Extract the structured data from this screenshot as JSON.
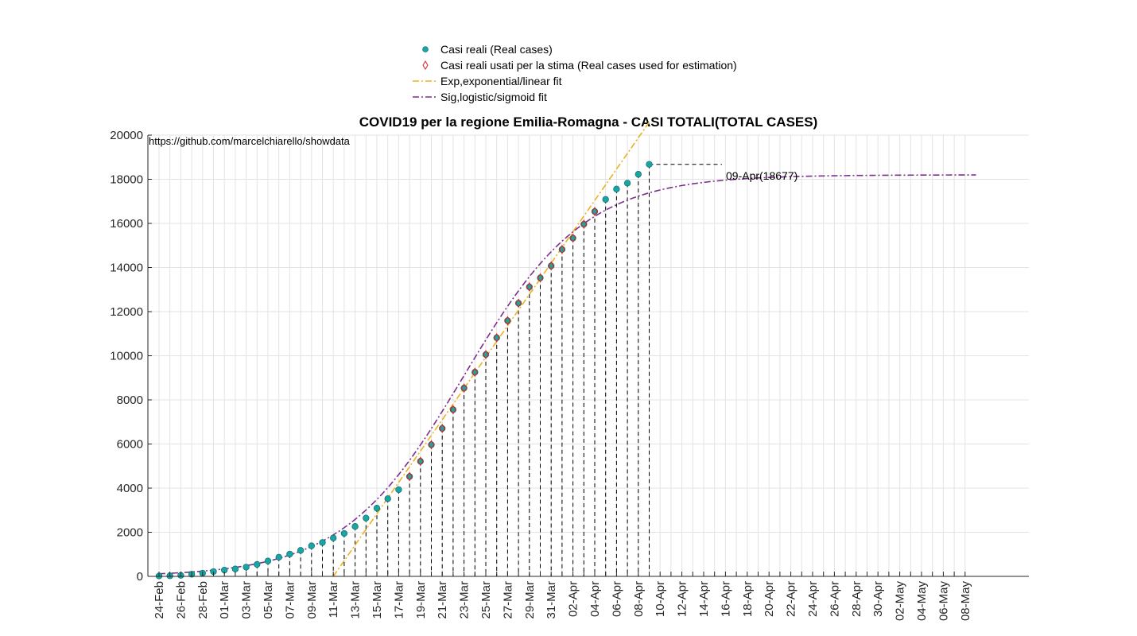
{
  "chart_data": {
    "type": "scatter",
    "title": "COVID19 per la regione Emilia-Romagna - CASI TOTALI(TOTAL CASES)",
    "source_note": "https://github.com/marcelchiarello/showdata",
    "annotation": "09-Apr(18677)",
    "xlabel": "",
    "ylabel": "",
    "x_start_date": "24-Feb",
    "x_tick_labels": [
      "24-Feb",
      "26-Feb",
      "28-Feb",
      "01-Mar",
      "03-Mar",
      "05-Mar",
      "07-Mar",
      "09-Mar",
      "11-Mar",
      "13-Mar",
      "15-Mar",
      "17-Mar",
      "19-Mar",
      "21-Mar",
      "23-Mar",
      "25-Mar",
      "27-Mar",
      "29-Mar",
      "31-Mar",
      "02-Apr",
      "04-Apr",
      "06-Apr",
      "08-Apr",
      "10-Apr",
      "12-Apr",
      "14-Apr",
      "16-Apr",
      "18-Apr",
      "20-Apr",
      "22-Apr",
      "24-Apr",
      "26-Apr",
      "28-Apr",
      "30-Apr",
      "02-May",
      "04-May",
      "06-May",
      "08-May"
    ],
    "ylim": [
      0,
      20000
    ],
    "y_ticks": [
      0,
      2000,
      4000,
      6000,
      8000,
      10000,
      12000,
      14000,
      16000,
      18000,
      20000
    ],
    "grid": true,
    "legend_position": "top",
    "series": [
      {
        "name": "Casi reali (Real cases)",
        "kind": "points",
        "color": "#1aa5a5",
        "dates": [
          "24-Feb",
          "25-Feb",
          "26-Feb",
          "27-Feb",
          "28-Feb",
          "29-Feb",
          "01-Mar",
          "02-Mar",
          "03-Mar",
          "04-Mar",
          "05-Mar",
          "06-Mar",
          "07-Mar",
          "08-Mar",
          "09-Mar",
          "10-Mar",
          "11-Mar",
          "12-Mar",
          "13-Mar",
          "14-Mar",
          "15-Mar",
          "16-Mar",
          "17-Mar",
          "18-Mar",
          "19-Mar",
          "20-Mar",
          "21-Mar",
          "22-Mar",
          "23-Mar",
          "24-Mar",
          "25-Mar",
          "26-Mar",
          "27-Mar",
          "28-Mar",
          "29-Mar",
          "30-Mar",
          "31-Mar",
          "01-Apr",
          "02-Apr",
          "03-Apr",
          "04-Apr",
          "05-Apr",
          "06-Apr",
          "07-Apr",
          "08-Apr",
          "09-Apr"
        ],
        "values": [
          18,
          26,
          47,
          97,
          145,
          217,
          285,
          335,
          420,
          544,
          698,
          870,
          1010,
          1180,
          1386,
          1533,
          1739,
          1947,
          2263,
          2644,
          3093,
          3522,
          3931,
          4525,
          5214,
          5968,
          6705,
          7555,
          8535,
          9254,
          10054,
          10816,
          11588,
          12383,
          13119,
          13531,
          14074,
          14821,
          15333,
          15963,
          16540,
          17089,
          17556,
          17825,
          18229,
          18677
        ]
      },
      {
        "name": "Casi reali usati per la stima (Real cases used for estimation)",
        "kind": "diamonds",
        "color": "#e02020",
        "dates": [
          "18-Mar",
          "19-Mar",
          "20-Mar",
          "21-Mar",
          "22-Mar",
          "23-Mar",
          "24-Mar",
          "25-Mar",
          "26-Mar",
          "27-Mar",
          "28-Mar",
          "29-Mar",
          "30-Mar",
          "31-Mar",
          "01-Apr",
          "02-Apr",
          "03-Apr",
          "04-Apr"
        ],
        "values": [
          4525,
          5214,
          5968,
          6705,
          7555,
          8535,
          9254,
          10054,
          10816,
          11588,
          12383,
          13119,
          13531,
          14074,
          14821,
          15333,
          15963,
          16540
        ]
      },
      {
        "name": "Exp,exponential/linear fit",
        "kind": "line",
        "color": "#edb120",
        "dash": "dashdot",
        "from_date": "11-Mar",
        "to_date": "09-Apr",
        "start_value": 0,
        "slope_per_day": 710
      },
      {
        "name": "Sig,logistic/sigmoid fit",
        "kind": "line",
        "color": "#7e2f8e",
        "dash": "dashdot",
        "from_date": "24-Feb",
        "to_date": "09-May",
        "logistic": {
          "L": 18200,
          "k": 0.18,
          "midpoint_date": "23-Mar"
        }
      }
    ]
  }
}
